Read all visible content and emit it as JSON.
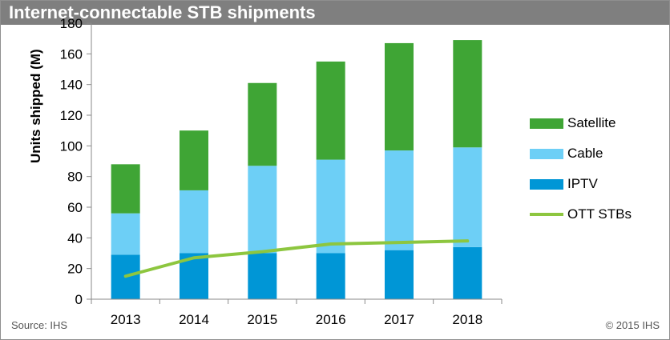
{
  "header": {
    "title": "Internet-connectable STB shipments"
  },
  "footer": {
    "source": "Source: IHS",
    "copyright": "© 2015 IHS"
  },
  "chart_data": {
    "type": "bar",
    "stacked": true,
    "categories": [
      "2013",
      "2014",
      "2015",
      "2016",
      "2017",
      "2018"
    ],
    "series": [
      {
        "name": "IPTV",
        "type": "bar",
        "color": "#0096d6",
        "values": [
          29,
          30,
          30,
          30,
          32,
          34
        ]
      },
      {
        "name": "Cable",
        "type": "bar",
        "color": "#6dcff6",
        "values": [
          27,
          41,
          57,
          61,
          65,
          65
        ]
      },
      {
        "name": "Satellite",
        "type": "bar",
        "color": "#3fa535",
        "values": [
          32,
          39,
          54,
          64,
          70,
          70
        ]
      },
      {
        "name": "OTT STBs",
        "type": "line",
        "color": "#8dc63f",
        "values": [
          15,
          27,
          31,
          36,
          37,
          38
        ]
      }
    ],
    "ylabel": "Units shipped (M)",
    "xlabel": "",
    "ylim": [
      0,
      180
    ],
    "yticks": [
      0,
      20,
      40,
      60,
      80,
      100,
      120,
      140,
      160,
      180
    ],
    "grid": false,
    "legend_position": "right",
    "legend_order": [
      "Satellite",
      "Cable",
      "IPTV",
      "OTT STBs"
    ]
  }
}
